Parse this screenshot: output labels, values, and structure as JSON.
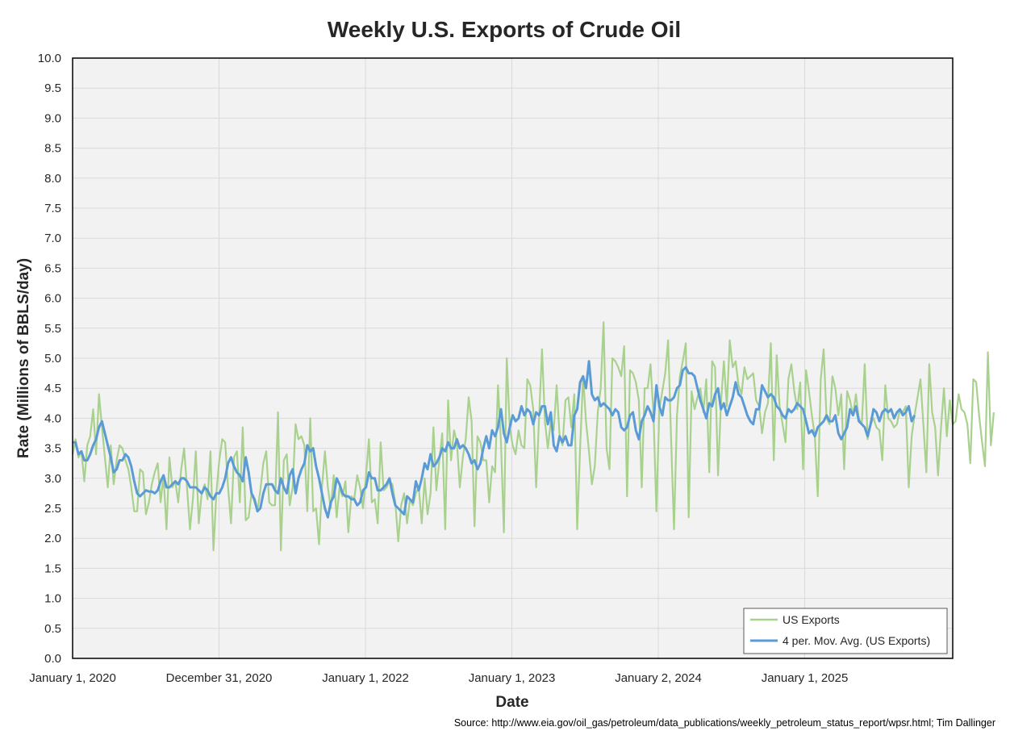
{
  "chart_data": {
    "type": "line",
    "title": "Weekly U.S. Exports of Crude Oil",
    "xlabel": "Date",
    "ylabel": "Rate (Millions of BBLS/day)",
    "source": "Source: http://www.eia.gov/oil_gas/petroleum/data_publications/weekly_petroleum_status_report/wpsr.html; Tim Dallinger",
    "ylim": [
      0,
      10
    ],
    "y_ticks": [
      "0.0",
      "0.5",
      "1.0",
      "1.5",
      "2.0",
      "2.5",
      "3.0",
      "3.5",
      "4.0",
      "4.5",
      "5.0",
      "5.5",
      "6.0",
      "6.5",
      "7.0",
      "7.5",
      "8.0",
      "8.5",
      "9.0",
      "9.5",
      "10.0"
    ],
    "x_axis_dates": [
      "January 1, 2020",
      "December 31, 2020",
      "January 1, 2022",
      "January 1, 2023",
      "January 2, 2024",
      "January 1, 2025"
    ],
    "x_week_range": [
      0,
      300
    ],
    "grid": true,
    "legend_position": "bottom-right",
    "colors": {
      "exports": "#a9d18e",
      "moving_avg": "#5b9bd5",
      "plot_bg": "#f2f2f2",
      "grid": "#d9d9d9"
    },
    "series": [
      {
        "name": "US Exports",
        "values": [
          3.4,
          3.65,
          3.35,
          3.45,
          2.95,
          3.55,
          3.7,
          4.15,
          3.4,
          4.4,
          3.85,
          3.35,
          2.85,
          3.55,
          2.9,
          3.3,
          3.55,
          3.5,
          3.3,
          3.15,
          2.85,
          2.45,
          2.45,
          3.15,
          3.1,
          2.4,
          2.6,
          2.9,
          3.1,
          3.25,
          2.6,
          3.05,
          2.15,
          3.35,
          2.85,
          2.95,
          2.6,
          3.15,
          3.5,
          2.85,
          2.15,
          2.65,
          3.45,
          2.25,
          2.75,
          2.9,
          2.65,
          3.45,
          1.8,
          2.75,
          3.3,
          3.65,
          3.6,
          2.85,
          2.25,
          3.35,
          3.45,
          2.6,
          3.85,
          2.3,
          2.35,
          2.75,
          2.6,
          2.45,
          2.8,
          3.25,
          3.45,
          2.6,
          2.55,
          2.55,
          4.1,
          1.8,
          3.3,
          3.4,
          2.55,
          2.85,
          3.9,
          3.65,
          3.7,
          3.55,
          2.45,
          4.0,
          2.45,
          2.5,
          1.9,
          2.85,
          3.45,
          2.85,
          2.5,
          3.05,
          2.35,
          2.85,
          2.7,
          2.95,
          2.1,
          2.7,
          2.65,
          3.05,
          2.85,
          2.5,
          3.05,
          3.65,
          2.6,
          2.65,
          2.25,
          3.6,
          2.8,
          2.85,
          2.95,
          2.9,
          2.6,
          1.95,
          2.55,
          2.75,
          2.25,
          2.65,
          2.55,
          2.75,
          2.85,
          2.25,
          3.0,
          2.4,
          2.75,
          3.85,
          2.8,
          3.3,
          3.75,
          2.15,
          4.3,
          3.3,
          3.8,
          3.6,
          2.85,
          3.35,
          3.65,
          4.35,
          3.95,
          2.2,
          3.7,
          3.6,
          3.3,
          3.3,
          2.6,
          3.2,
          3.1,
          4.55,
          3.6,
          2.1,
          5.0,
          3.85,
          3.55,
          3.4,
          3.8,
          3.55,
          3.5,
          4.65,
          4.55,
          4.15,
          2.85,
          4.0,
          5.15,
          3.95,
          3.5,
          3.95,
          3.8,
          4.55,
          3.7,
          3.55,
          4.3,
          4.35,
          3.85,
          4.4,
          2.15,
          3.5,
          4.7,
          3.95,
          3.45,
          2.9,
          3.2,
          4.1,
          4.5,
          5.6,
          3.5,
          3.15,
          5.0,
          4.95,
          4.85,
          4.7,
          5.2,
          2.7,
          4.8,
          4.75,
          4.6,
          4.3,
          2.85,
          4.5,
          4.5,
          4.9,
          4.05,
          2.45,
          4.15,
          4.45,
          4.75,
          5.3,
          3.65,
          2.15,
          4.05,
          4.7,
          4.95,
          5.25,
          2.35,
          4.45,
          4.15,
          4.35,
          4.5,
          4.1,
          4.65,
          3.1,
          4.95,
          4.85,
          3.05,
          4.25,
          4.95,
          4.2,
          5.3,
          4.85,
          4.95,
          4.55,
          4.4,
          4.85,
          4.65,
          4.7,
          4.75,
          4.3,
          4.2,
          3.75,
          4.1,
          4.25,
          5.25,
          3.3,
          5.05,
          4.2,
          3.9,
          3.6,
          4.65,
          4.9,
          4.45,
          4.15,
          4.6,
          3.15,
          4.8,
          4.45,
          4.05,
          3.7,
          2.7,
          4.65,
          5.15,
          4.0,
          3.9,
          4.7,
          4.5,
          4.05,
          4.4,
          3.15,
          4.45,
          4.3,
          4.05,
          4.4,
          4.0,
          3.9,
          4.9,
          3.65,
          3.9,
          4.0,
          3.85,
          3.8,
          3.3,
          4.55,
          4.0,
          3.95,
          3.85,
          3.9,
          4.15,
          4.1,
          4.2,
          2.85,
          3.7,
          4.05,
          4.35,
          4.65,
          3.9,
          3.1,
          4.9,
          4.1,
          3.85,
          3.05,
          3.85,
          4.5,
          3.7,
          4.3,
          3.9,
          3.95,
          4.4,
          4.15,
          4.1,
          3.9,
          3.25,
          4.65,
          4.6,
          4.05,
          3.6,
          3.2,
          5.1,
          3.55,
          4.1
        ]
      },
      {
        "name": "4 per. Mov. Avg. (US Exports)",
        "values": [
          3.6,
          3.6,
          3.4,
          3.45,
          3.3,
          3.3,
          3.4,
          3.55,
          3.65,
          3.85,
          3.95,
          3.75,
          3.55,
          3.35,
          3.1,
          3.15,
          3.3,
          3.3,
          3.4,
          3.35,
          3.2,
          2.95,
          2.75,
          2.7,
          2.75,
          2.8,
          2.78,
          2.78,
          2.75,
          2.8,
          2.95,
          3.05,
          2.85,
          2.85,
          2.9,
          2.95,
          2.9,
          3.0,
          3.0,
          2.95,
          2.85,
          2.85,
          2.85,
          2.8,
          2.75,
          2.85,
          2.8,
          2.7,
          2.65,
          2.75,
          2.75,
          2.85,
          3.0,
          3.25,
          3.35,
          3.2,
          3.1,
          3.05,
          2.95,
          3.35,
          3.1,
          2.75,
          2.65,
          2.45,
          2.5,
          2.75,
          2.9,
          2.9,
          2.9,
          2.8,
          2.75,
          3.0,
          2.85,
          2.75,
          3.05,
          3.15,
          2.75,
          3.0,
          3.15,
          3.25,
          3.55,
          3.45,
          3.5,
          3.2,
          3.0,
          2.75,
          2.5,
          2.35,
          2.6,
          2.7,
          3.0,
          2.9,
          2.75,
          2.7,
          2.7,
          2.65,
          2.65,
          2.55,
          2.6,
          2.8,
          2.85,
          3.1,
          3.0,
          3.0,
          2.8,
          2.8,
          2.85,
          2.9,
          3.0,
          2.75,
          2.55,
          2.5,
          2.45,
          2.4,
          2.7,
          2.65,
          2.6,
          2.95,
          2.8,
          3.0,
          3.25,
          3.15,
          3.4,
          3.2,
          3.25,
          3.35,
          3.5,
          3.45,
          3.6,
          3.5,
          3.5,
          3.65,
          3.5,
          3.55,
          3.5,
          3.4,
          3.25,
          3.3,
          3.15,
          3.25,
          3.5,
          3.7,
          3.5,
          3.8,
          3.7,
          3.85,
          4.15,
          3.75,
          3.6,
          3.85,
          4.05,
          3.95,
          4.0,
          4.2,
          4.05,
          4.15,
          4.1,
          3.9,
          4.1,
          4.05,
          4.2,
          4.2,
          3.9,
          4.1,
          3.55,
          3.45,
          3.7,
          3.6,
          3.7,
          3.55,
          3.55,
          4.05,
          4.15,
          4.6,
          4.7,
          4.5,
          4.95,
          4.4,
          4.3,
          4.35,
          4.2,
          4.25,
          4.2,
          4.15,
          4.05,
          4.15,
          4.1,
          3.85,
          3.8,
          3.85,
          4.05,
          4.1,
          3.8,
          3.65,
          3.95,
          4.05,
          4.2,
          4.1,
          3.95,
          4.55,
          4.2,
          4.05,
          4.35,
          4.3,
          4.3,
          4.35,
          4.5,
          4.55,
          4.8,
          4.85,
          4.75,
          4.75,
          4.7,
          4.5,
          4.3,
          4.15,
          4.0,
          4.25,
          4.2,
          4.4,
          4.5,
          4.15,
          4.25,
          4.05,
          4.2,
          4.35,
          4.6,
          4.4,
          4.35,
          4.2,
          4.05,
          3.95,
          3.9,
          4.15,
          4.15,
          4.55,
          4.45,
          4.35,
          4.4,
          4.35,
          4.2,
          4.15,
          4.05,
          4.0,
          4.15,
          4.1,
          4.15,
          4.25,
          4.2,
          4.15,
          3.95,
          3.75,
          3.8,
          3.7,
          3.85,
          3.9,
          3.95,
          4.05,
          3.95,
          3.95,
          4.05,
          3.75,
          3.65,
          3.75,
          3.85,
          4.15,
          4.05,
          4.2,
          3.95,
          3.9,
          3.85,
          3.7,
          3.9,
          4.15,
          4.1,
          3.95,
          4.1,
          4.15,
          4.1,
          4.15,
          4.0,
          4.1,
          4.15,
          4.05,
          4.1,
          4.2,
          3.95,
          4.05
        ]
      }
    ]
  }
}
